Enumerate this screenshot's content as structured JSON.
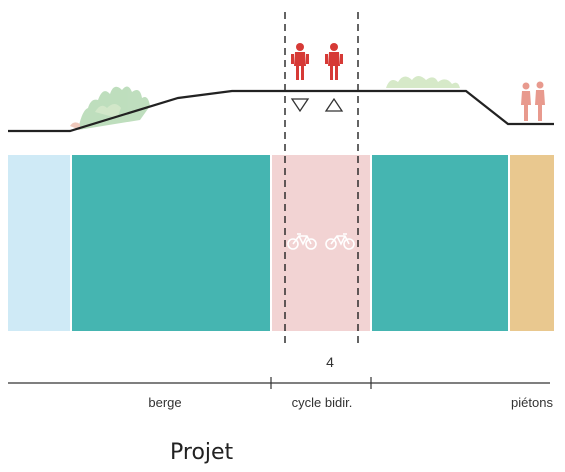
{
  "colors": {
    "water": "#cfeaf6",
    "green": "#45b5b1",
    "cycle": "#f2d3d3",
    "pedestrian": "#e9c88f",
    "cyclist": "#d63a36",
    "pedestrian_figure": "#e89a8e",
    "vegetation": "#a9d3a8",
    "ground_line": "#222222"
  },
  "icons": [
    "cyclist-icon",
    "pedestrian-icon",
    "bicycle-icon",
    "direction-down-triangle-icon",
    "direction-up-triangle-icon",
    "vegetation-icon"
  ],
  "dimension": {
    "value": "4"
  },
  "zones": {
    "berge": "berge",
    "cycle": "cycle bidir.",
    "pietons": "piétons"
  },
  "caption": "Projet"
}
